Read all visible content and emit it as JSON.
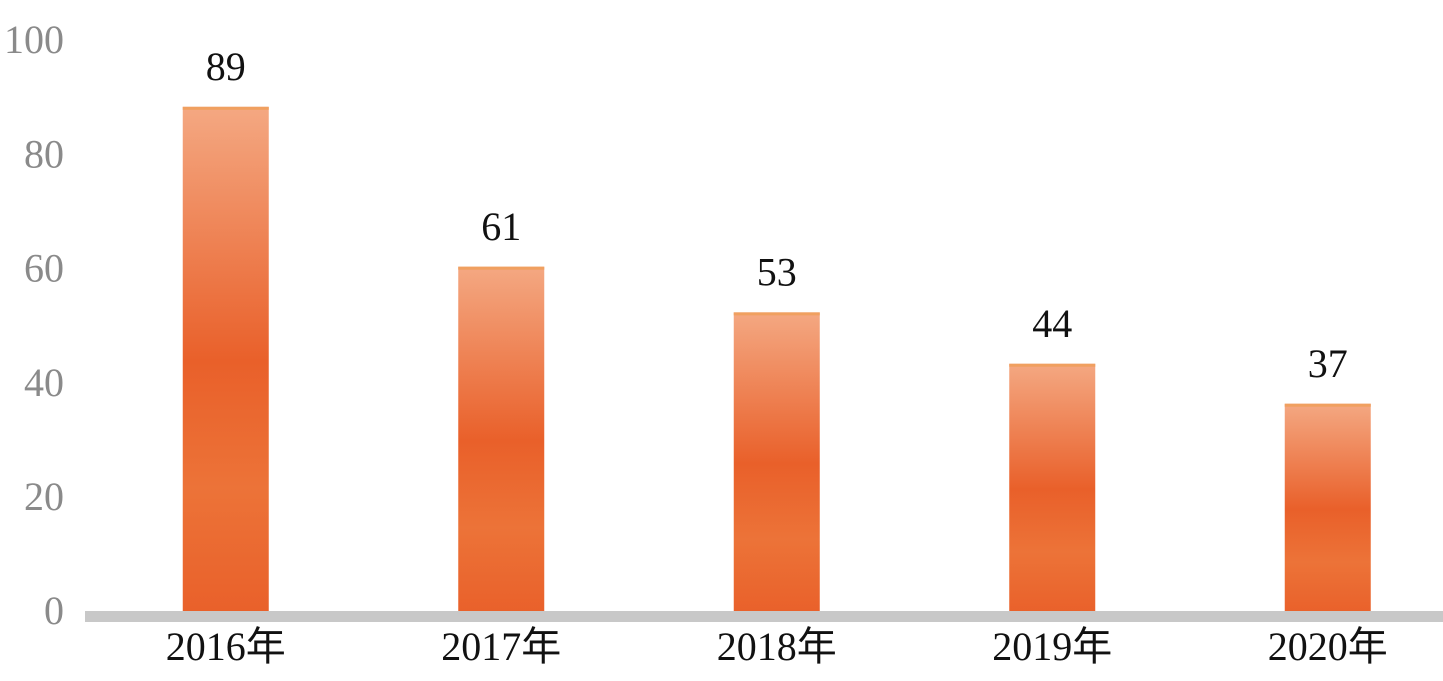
{
  "chart_data": {
    "type": "bar",
    "categories": [
      "2016年",
      "2017年",
      "2018年",
      "2019年",
      "2020年"
    ],
    "values": [
      89,
      61,
      53,
      44,
      37
    ],
    "color": "#e9602a",
    "ylim": [
      0,
      100
    ],
    "yticks": [
      0,
      20,
      40,
      60,
      80,
      100
    ],
    "grid": false
  }
}
